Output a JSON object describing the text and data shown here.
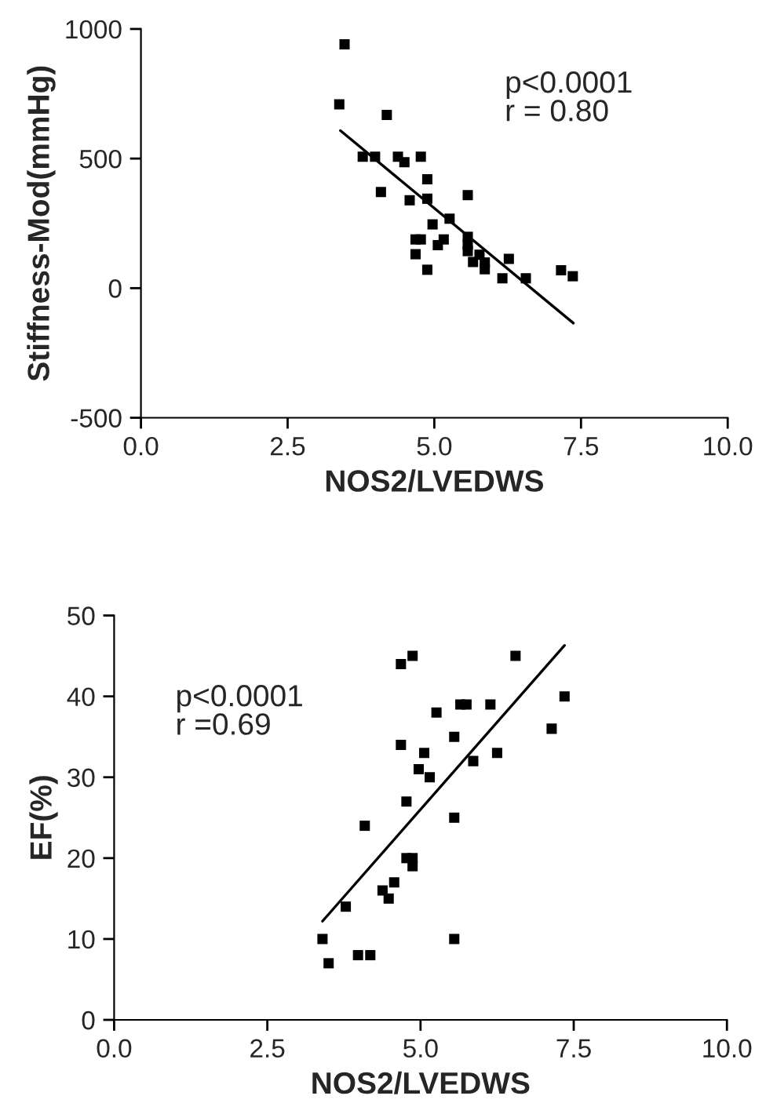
{
  "chart_data": [
    {
      "type": "scatter",
      "xlabel": "NOS2/LVEDWS",
      "ylabel": "Stiffness-Mod(mmHg)",
      "xlim": [
        0,
        10
      ],
      "ylim": [
        -500,
        1000
      ],
      "xticks": [
        {
          "value": 0,
          "label": "0.0"
        },
        {
          "value": 2.5,
          "label": "2.5"
        },
        {
          "value": 5,
          "label": "5.0"
        },
        {
          "value": 7.5,
          "label": "7.5"
        },
        {
          "value": 10,
          "label": "10.0"
        }
      ],
      "yticks": [
        -500,
        0,
        500,
        1000
      ],
      "annotations": [
        "p<0.0001\nr = 0.80"
      ],
      "series": [
        {
          "marker": "square",
          "color": "#000000",
          "x": [
            3.47,
            3.38,
            4.19,
            3.78,
            3.99,
            4.38,
            4.49,
            4.77,
            4.88,
            4.09,
            4.58,
            4.88,
            5.57,
            5.26,
            4.97,
            4.68,
            4.77,
            5.16,
            5.06,
            4.68,
            4.88,
            5.57,
            5.57,
            5.57,
            5.66,
            5.77,
            5.86,
            5.86,
            6.27,
            6.16,
            6.56,
            7.16,
            7.36
          ],
          "values": [
            941,
            709,
            668,
            507,
            507,
            507,
            486,
            507,
            420,
            371,
            339,
            345,
            359,
            268,
            246,
            188,
            188,
            188,
            166,
            131,
            71,
            198,
            168,
            143,
            101,
            129,
            99,
            73,
            113,
            38,
            38,
            69,
            46
          ]
        },
        {
          "type": "line",
          "color": "#000000",
          "x": [
            3.4,
            7.37
          ],
          "values": [
            608,
            -135
          ]
        }
      ]
    },
    {
      "type": "scatter",
      "xlabel": "NOS2/LVEDWS",
      "ylabel": "EF(%)",
      "xlim": [
        0,
        10
      ],
      "ylim": [
        0,
        50
      ],
      "xticks": [
        {
          "value": 0,
          "label": "0.0"
        },
        {
          "value": 2.5,
          "label": "2.5"
        },
        {
          "value": 5,
          "label": "5.0"
        },
        {
          "value": 7.5,
          "label": "7.5"
        },
        {
          "value": 10,
          "label": "10.0"
        }
      ],
      "yticks": [
        0,
        10,
        20,
        30,
        40,
        50
      ],
      "annotations": [
        "p<0.0001\nr =0.69"
      ],
      "series": [
        {
          "marker": "square",
          "color": "#000000",
          "x": [
            4.68,
            4.87,
            6.55,
            7.35,
            5.65,
            5.75,
            6.14,
            5.26,
            7.14,
            5.55,
            4.68,
            5.06,
            6.25,
            5.86,
            4.97,
            5.15,
            4.77,
            5.55,
            4.09,
            4.77,
            4.87,
            4.87,
            4.57,
            4.38,
            4.48,
            3.78,
            3.4,
            5.55,
            3.5,
            3.98,
            4.18
          ],
          "values": [
            44,
            45,
            45,
            40,
            39,
            39,
            39,
            38,
            36,
            35,
            34,
            33,
            33,
            32,
            31,
            30,
            27,
            25,
            24,
            20,
            20,
            19,
            17,
            16,
            15,
            14,
            10,
            10,
            7,
            8,
            8
          ]
        },
        {
          "type": "line",
          "color": "#000000",
          "x": [
            3.4,
            7.35
          ],
          "values": [
            12.2,
            46.3
          ]
        }
      ]
    }
  ]
}
